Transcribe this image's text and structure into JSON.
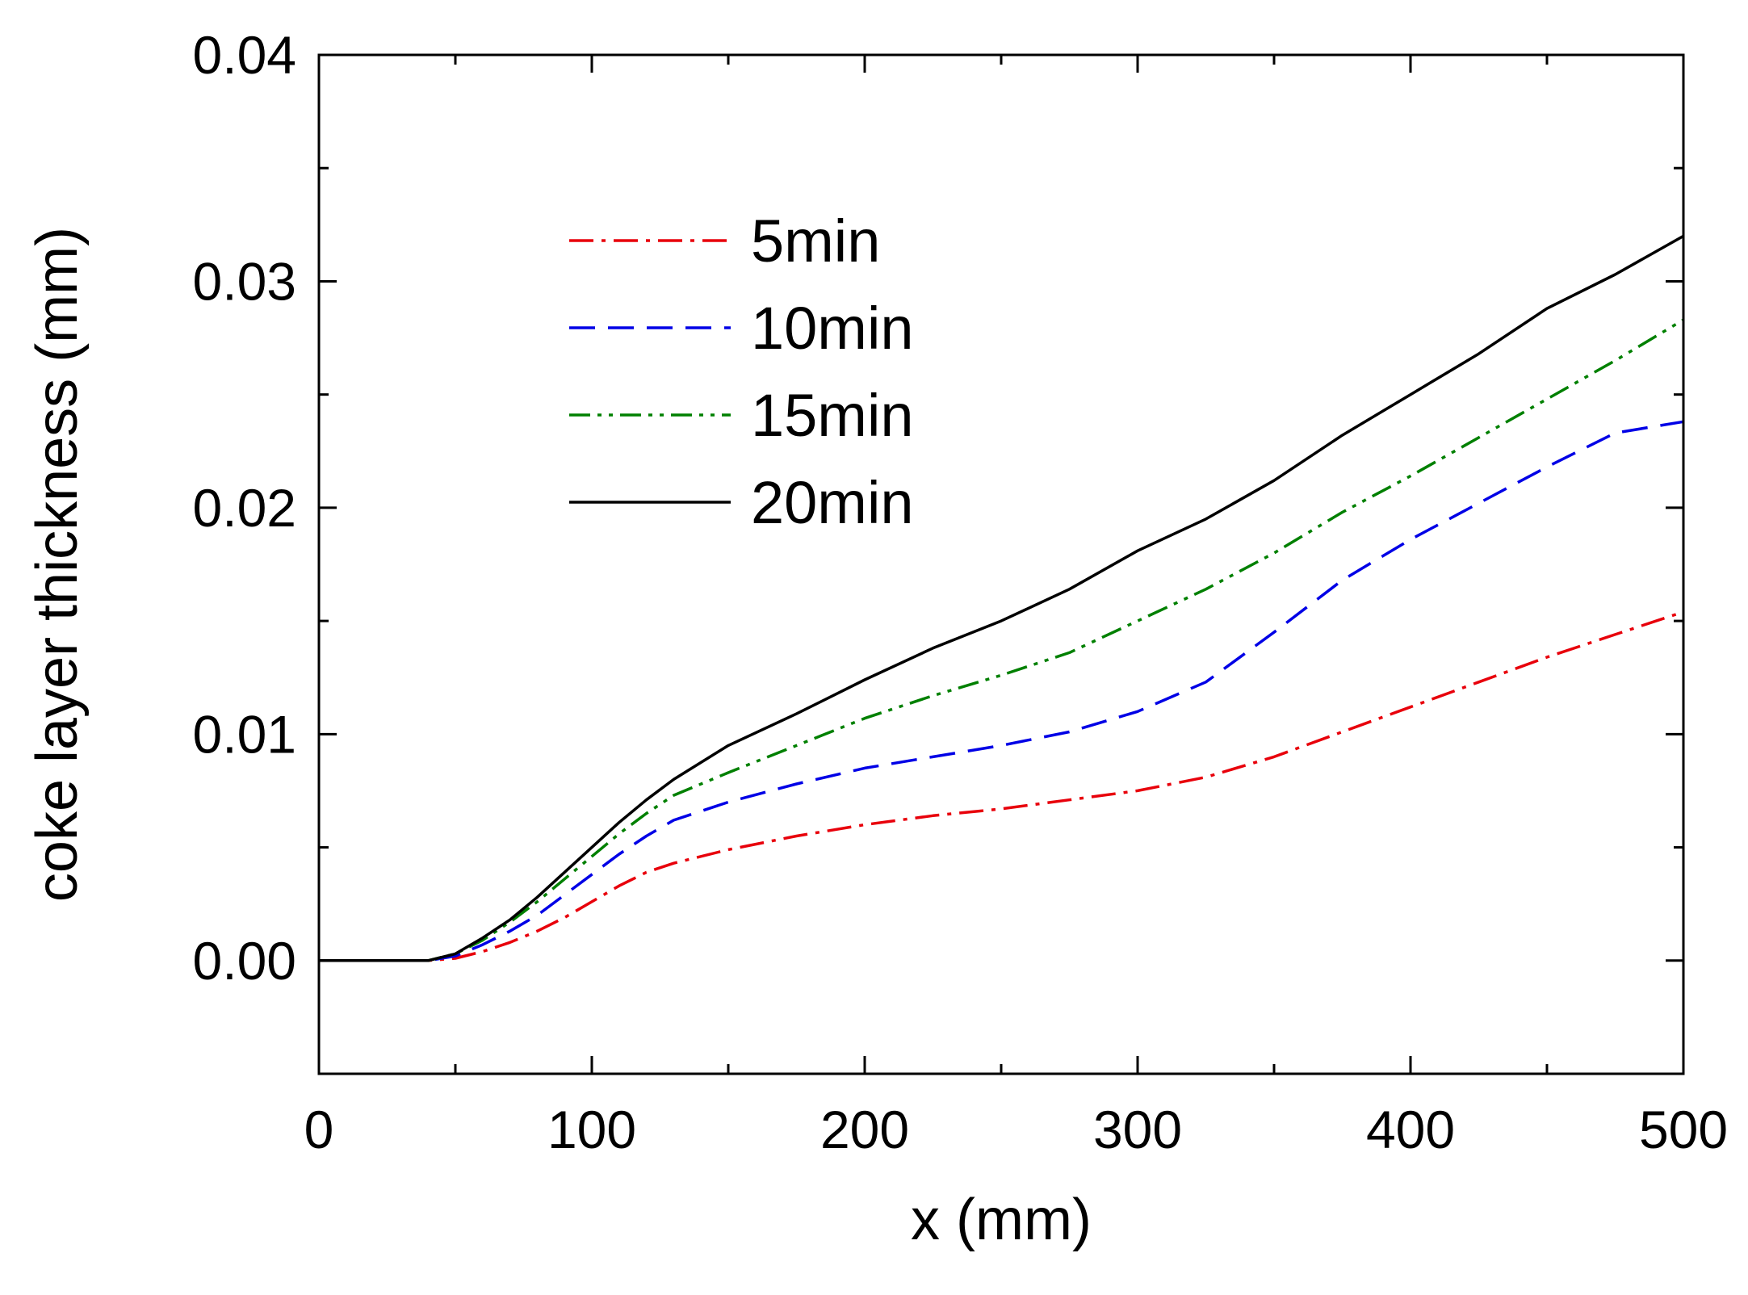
{
  "chart_data": {
    "type": "line",
    "title": "",
    "xlabel": "x (mm)",
    "ylabel": "coke layer thickness (mm)",
    "xlim": [
      0,
      500
    ],
    "ylim": [
      -0.005,
      0.04
    ],
    "xticks": [
      0,
      100,
      200,
      300,
      400,
      500
    ],
    "xtick_labels": [
      "0",
      "100",
      "200",
      "300",
      "400",
      "500"
    ],
    "yticks": [
      0.0,
      0.01,
      0.02,
      0.03,
      0.04
    ],
    "ytick_labels": [
      "0.00",
      "0.01",
      "0.02",
      "0.03",
      "0.04"
    ],
    "grid": false,
    "legend": "upper-left",
    "series": [
      {
        "name": "5min",
        "color": "#e8000b",
        "style": "dashdot",
        "x": [
          0,
          40,
          50,
          60,
          70,
          80,
          90,
          100,
          110,
          120,
          130,
          150,
          175,
          200,
          225,
          250,
          275,
          300,
          325,
          350,
          375,
          400,
          425,
          450,
          475,
          500
        ],
        "y": [
          0,
          0,
          0.0001,
          0.0004,
          0.0008,
          0.0013,
          0.0019,
          0.0026,
          0.0033,
          0.0039,
          0.0043,
          0.0049,
          0.0055,
          0.006,
          0.0064,
          0.0067,
          0.0071,
          0.0075,
          0.0081,
          0.009,
          0.0101,
          0.0112,
          0.0123,
          0.0134,
          0.0144,
          0.0154
        ]
      },
      {
        "name": "10min",
        "color": "#0000e6",
        "style": "dashed",
        "x": [
          0,
          40,
          50,
          60,
          70,
          80,
          90,
          100,
          110,
          120,
          130,
          150,
          175,
          200,
          225,
          250,
          275,
          300,
          325,
          350,
          375,
          400,
          425,
          450,
          475,
          500
        ],
        "y": [
          0,
          0,
          0.0002,
          0.0007,
          0.0013,
          0.002,
          0.0029,
          0.0038,
          0.0047,
          0.0055,
          0.0062,
          0.007,
          0.0078,
          0.0085,
          0.009,
          0.0095,
          0.0101,
          0.011,
          0.0123,
          0.0145,
          0.0168,
          0.0186,
          0.0202,
          0.0218,
          0.0233,
          0.0238
        ]
      },
      {
        "name": "15min",
        "color": "#008000",
        "style": "dashdotdot",
        "x": [
          0,
          40,
          50,
          60,
          70,
          80,
          90,
          100,
          110,
          120,
          130,
          150,
          175,
          200,
          225,
          250,
          275,
          300,
          325,
          350,
          375,
          400,
          425,
          450,
          475,
          500
        ],
        "y": [
          0,
          0,
          0.0003,
          0.0009,
          0.0017,
          0.0026,
          0.0036,
          0.0046,
          0.0056,
          0.0065,
          0.0073,
          0.0083,
          0.0095,
          0.0107,
          0.0117,
          0.0126,
          0.0136,
          0.015,
          0.0164,
          0.018,
          0.0198,
          0.0214,
          0.0231,
          0.0248,
          0.0265,
          0.0283
        ]
      },
      {
        "name": "20min",
        "color": "#000000",
        "style": "solid",
        "x": [
          0,
          40,
          50,
          60,
          70,
          80,
          90,
          100,
          110,
          120,
          130,
          150,
          175,
          200,
          225,
          250,
          275,
          300,
          325,
          350,
          375,
          400,
          425,
          450,
          475,
          500
        ],
        "y": [
          0,
          0,
          0.0003,
          0.001,
          0.0018,
          0.0028,
          0.0039,
          0.005,
          0.0061,
          0.0071,
          0.008,
          0.0095,
          0.0109,
          0.0124,
          0.0138,
          0.015,
          0.0164,
          0.0181,
          0.0195,
          0.0212,
          0.0232,
          0.025,
          0.0268,
          0.0288,
          0.0303,
          0.032
        ]
      }
    ]
  }
}
